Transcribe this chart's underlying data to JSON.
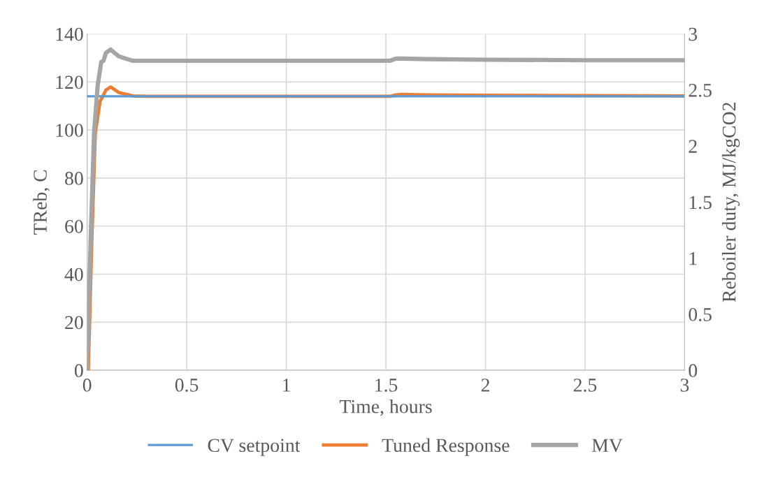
{
  "chart_data": {
    "type": "line",
    "xlabel": "Time, hours",
    "ylabel": "TReb, C",
    "y2label": "Reboiler duty, MJ/kgCO2",
    "xlim": [
      0,
      3
    ],
    "xticks": [
      0,
      0.5,
      1,
      1.5,
      2,
      2.5,
      3
    ],
    "ylim": [
      0,
      140
    ],
    "yticks": [
      0,
      20,
      40,
      60,
      80,
      100,
      120,
      140
    ],
    "y2lim": [
      0,
      3
    ],
    "y2ticks": [
      0,
      0.5,
      1,
      1.5,
      2,
      2.5,
      3
    ],
    "grid": true,
    "legend": "bottom",
    "marker": "none",
    "line_style": "solid",
    "series": [
      {
        "name": "CV setpoint",
        "color": "#5b9bd5",
        "x": [
          0,
          3
        ],
        "values": [
          114,
          114
        ]
      },
      {
        "name": "Tuned Response",
        "color": "#ed7d31",
        "x": [
          0,
          0.006,
          0.024,
          0.041,
          0.065,
          0.077,
          0.094,
          0.118,
          0.159,
          0.23,
          0.3,
          1.52,
          1.55,
          1.58,
          1.7,
          2,
          2.5,
          3
        ],
        "values": [
          0,
          0,
          55,
          98.7,
          112,
          113.7,
          116.6,
          117.9,
          115.6,
          114.2,
          114,
          114,
          114.6,
          114.8,
          114.6,
          114.5,
          114.3,
          114.2
        ]
      },
      {
        "name": "MV",
        "color": "#a5a5a5",
        "axis": "y2",
        "x": [
          0,
          0.018,
          0.035,
          0.053,
          0.071,
          0.082,
          0.094,
          0.118,
          0.159,
          0.23,
          0.3,
          1.52,
          1.55,
          1.58,
          1.7,
          2,
          2.5,
          3
        ],
        "values": [
          0,
          1.18,
          2.12,
          2.54,
          2.75,
          2.76,
          2.83,
          2.86,
          2.8,
          2.76,
          2.76,
          2.76,
          2.78,
          2.78,
          2.775,
          2.77,
          2.765,
          2.765
        ]
      }
    ]
  }
}
